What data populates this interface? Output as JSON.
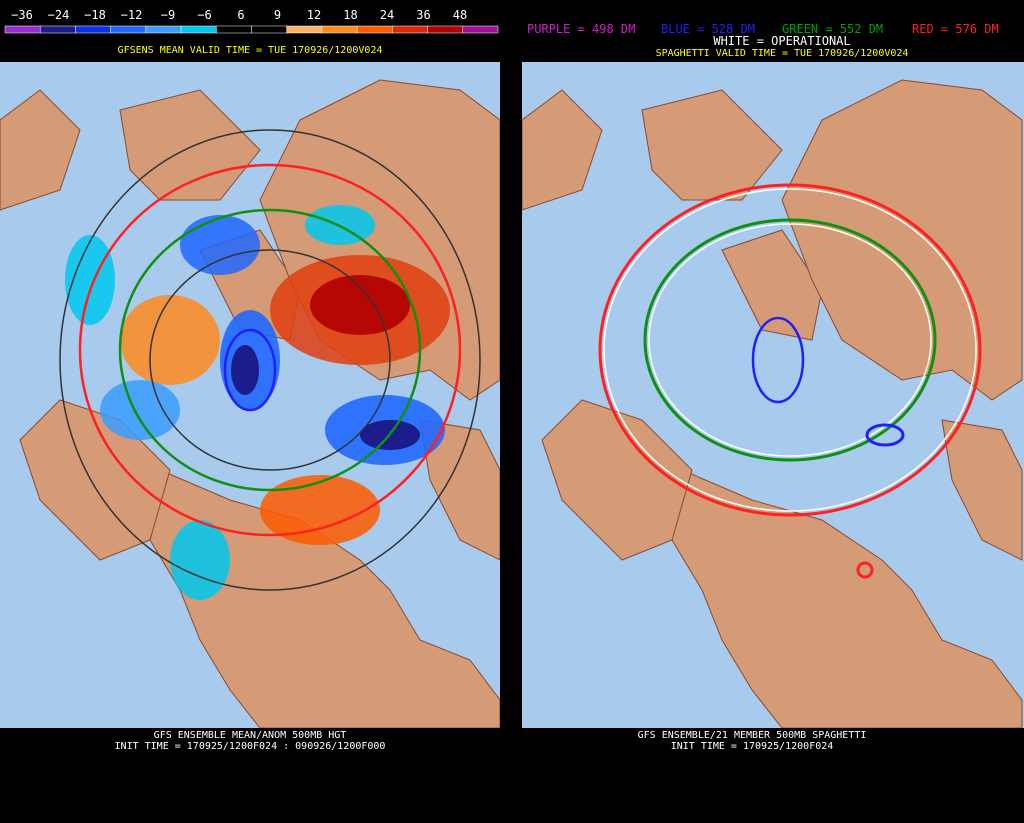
{
  "left_panel": {
    "legend": {
      "labels": [
        "−36",
        "−24",
        "−18",
        "−12",
        "−9",
        "−6",
        "6",
        "9",
        "12",
        "18",
        "24",
        "36",
        "48"
      ],
      "colors": [
        "#9a2cd8",
        "#1c1c8c",
        "#0a32e6",
        "#2068ff",
        "#3c9cff",
        "#00c8f0",
        "#000000",
        "#000000",
        "#ffb066",
        "#ff8a1e",
        "#ff5a00",
        "#e02800",
        "#b00000",
        "#a0109a"
      ]
    },
    "header": "GFSENS MEAN VALID TIME = TUE 170926/1200V024",
    "footer": [
      "GFS ENSEMBLE MEAN/ANOM 500MB HGT",
      "INIT TIME = 170925/1200F024 : 090926/1200F000"
    ]
  },
  "right_panel": {
    "key": [
      {
        "text": "PURPLE = 498 DM",
        "color": "#d020d0"
      },
      {
        "text": "BLUE = 528 DM",
        "color": "#2020ff"
      },
      {
        "text": "GREEN = 552 DM",
        "color": "#00a000"
      },
      {
        "text": "RED = 576 DM",
        "color": "#ff2020"
      }
    ],
    "operational": "WHITE = OPERATIONAL",
    "header": "SPAGHETTI VALID TIME = TUE 170926/1200V024",
    "footer": [
      "GFS ENSEMBLE/21 MEMBER 500MB SPAGHETTI",
      "INIT TIME = 170925/1200F024"
    ]
  }
}
